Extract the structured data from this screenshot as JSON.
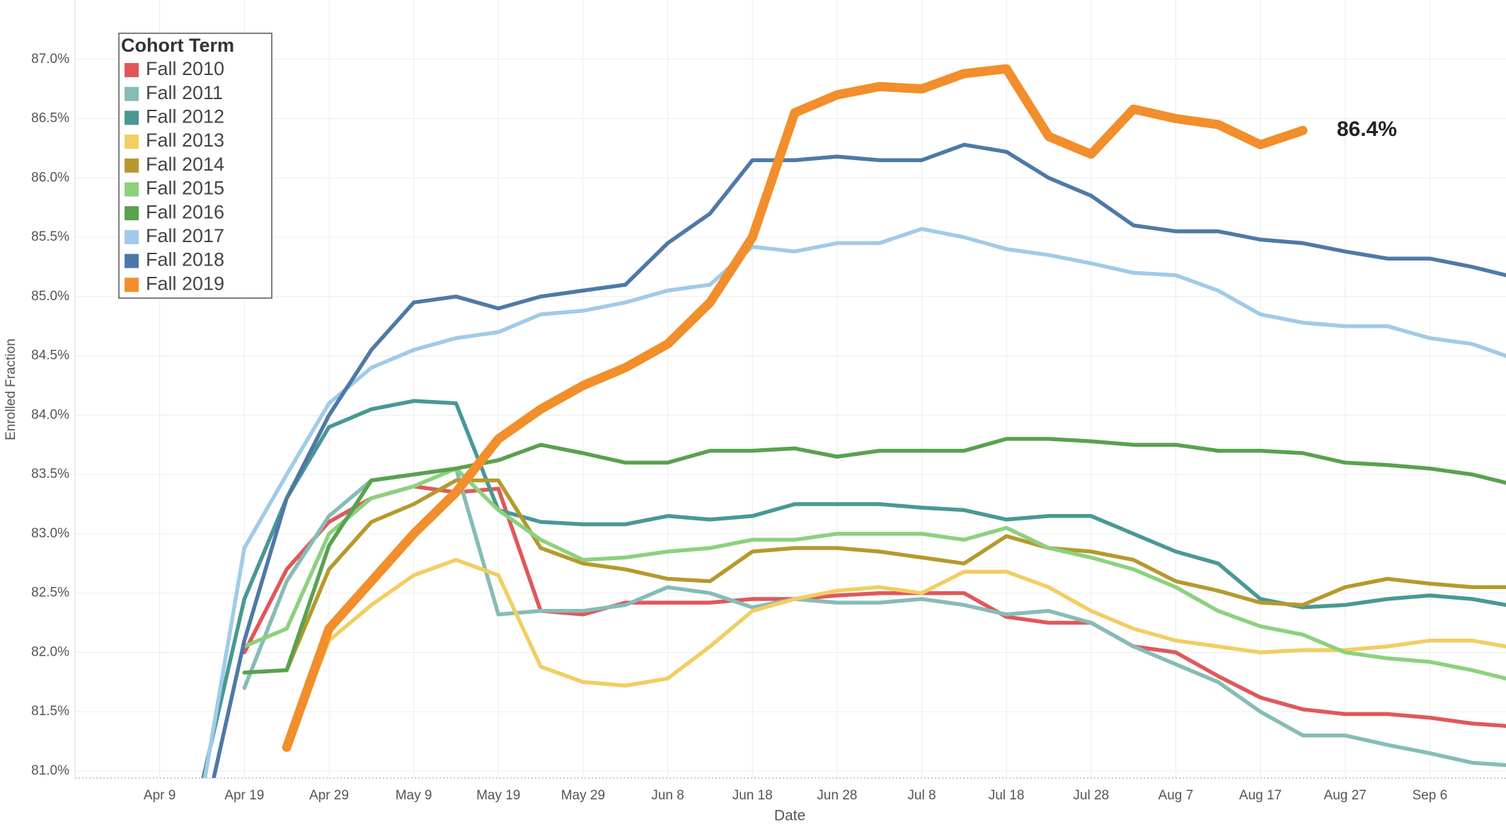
{
  "chart_data": {
    "type": "line",
    "x_label": "Date",
    "y_label": "Enrolled Fraction",
    "legend_title": "Cohort Term",
    "legend": "top-left",
    "grid": true,
    "x": [
      "Apr 14",
      "Apr 19",
      "Apr 24",
      "Apr 29",
      "May 4",
      "May 9",
      "May 14",
      "May 19",
      "May 24",
      "May 29",
      "Jun 3",
      "Jun 8",
      "Jun 13",
      "Jun 18",
      "Jun 23",
      "Jun 28",
      "Jul 3",
      "Jul 8",
      "Jul 13",
      "Jul 18",
      "Jul 23",
      "Jul 28",
      "Aug 2",
      "Aug 7",
      "Aug 12",
      "Aug 17",
      "Aug 22",
      "Aug 27",
      "Sep 1",
      "Sep 6",
      "Sep 11",
      "Sep 15"
    ],
    "xlim": [
      "Mar 30",
      "Sep 15"
    ],
    "xticks": [
      "Apr 9",
      "Apr 19",
      "Apr 29",
      "May 9",
      "May 19",
      "May 29",
      "Jun 8",
      "Jun 18",
      "Jun 28",
      "Jul 8",
      "Jul 18",
      "Jul 28",
      "Aug 7",
      "Aug 17",
      "Aug 27",
      "Sep 6"
    ],
    "ylim": [
      80.94,
      87.5
    ],
    "yticks": [
      {
        "value": 81,
        "label": "81.0%"
      },
      {
        "value": 81.5,
        "label": "81.5%"
      },
      {
        "value": 82,
        "label": "82.0%"
      },
      {
        "value": 82.5,
        "label": "82.5%"
      },
      {
        "value": 83,
        "label": "83.0%"
      },
      {
        "value": 83.5,
        "label": "83.5%"
      },
      {
        "value": 84,
        "label": "84.0%"
      },
      {
        "value": 84.5,
        "label": "84.5%"
      },
      {
        "value": 85,
        "label": "85.0%"
      },
      {
        "value": 85.5,
        "label": "85.5%"
      },
      {
        "value": 86,
        "label": "86.0%"
      },
      {
        "value": 86.5,
        "label": "86.5%"
      },
      {
        "value": 87,
        "label": "87.0%"
      }
    ],
    "series": [
      {
        "name": "Fall 2010",
        "color": "#e15759",
        "values": [
          null,
          82.0,
          82.7,
          83.1,
          83.3,
          83.4,
          83.35,
          83.38,
          82.35,
          82.32,
          82.42,
          82.42,
          82.42,
          82.45,
          82.45,
          82.48,
          82.5,
          82.5,
          82.5,
          82.3,
          82.25,
          82.25,
          82.05,
          82.0,
          81.8,
          81.62,
          81.52,
          81.48,
          81.48,
          81.45,
          81.4,
          81.38
        ]
      },
      {
        "name": "Fall 2011",
        "color": "#86bcb6",
        "values": [
          null,
          81.7,
          82.6,
          83.15,
          83.45,
          83.5,
          83.55,
          82.32,
          82.35,
          82.35,
          82.4,
          82.55,
          82.5,
          82.38,
          82.45,
          82.42,
          82.42,
          82.45,
          82.4,
          82.32,
          82.35,
          82.25,
          82.05,
          81.9,
          81.75,
          81.5,
          81.3,
          81.3,
          81.22,
          81.15,
          81.07,
          81.05
        ]
      },
      {
        "name": "Fall 2012",
        "color": "#499894",
        "values": [
          80.9,
          82.45,
          83.3,
          83.9,
          84.05,
          84.12,
          84.1,
          83.2,
          83.1,
          83.08,
          83.08,
          83.15,
          83.12,
          83.15,
          83.25,
          83.25,
          83.25,
          83.22,
          83.2,
          83.12,
          83.15,
          83.15,
          83.0,
          82.85,
          82.75,
          82.45,
          82.38,
          82.4,
          82.45,
          82.48,
          82.45,
          82.4
        ]
      },
      {
        "name": "Fall 2013",
        "color": "#f1ce63",
        "values": [
          null,
          null,
          81.2,
          82.1,
          82.4,
          82.65,
          82.78,
          82.65,
          81.88,
          81.75,
          81.72,
          81.78,
          82.05,
          82.35,
          82.45,
          82.52,
          82.55,
          82.5,
          82.68,
          82.68,
          82.55,
          82.35,
          82.2,
          82.1,
          82.05,
          82.0,
          82.02,
          82.02,
          82.05,
          82.1,
          82.1,
          82.05
        ]
      },
      {
        "name": "Fall 2014",
        "color": "#b6992d",
        "values": [
          null,
          null,
          81.85,
          82.7,
          83.1,
          83.25,
          83.45,
          83.45,
          82.88,
          82.75,
          82.7,
          82.62,
          82.6,
          82.85,
          82.88,
          82.88,
          82.85,
          82.8,
          82.75,
          82.98,
          82.88,
          82.85,
          82.78,
          82.6,
          82.52,
          82.42,
          82.4,
          82.55,
          82.62,
          82.58,
          82.55,
          82.55
        ]
      },
      {
        "name": "Fall 2015",
        "color": "#8cd17d",
        "values": [
          null,
          82.05,
          82.2,
          83.0,
          83.3,
          83.4,
          83.55,
          83.2,
          82.95,
          82.78,
          82.8,
          82.85,
          82.88,
          82.95,
          82.95,
          83.0,
          83.0,
          83.0,
          82.95,
          83.05,
          82.88,
          82.8,
          82.7,
          82.55,
          82.35,
          82.22,
          82.15,
          82.0,
          81.95,
          81.92,
          81.85,
          81.78
        ]
      },
      {
        "name": "Fall 2016",
        "color": "#59a14f",
        "values": [
          null,
          81.83,
          81.85,
          82.9,
          83.45,
          83.5,
          83.55,
          83.62,
          83.75,
          83.68,
          83.6,
          83.6,
          83.7,
          83.7,
          83.72,
          83.65,
          83.7,
          83.7,
          83.7,
          83.8,
          83.8,
          83.78,
          83.75,
          83.75,
          83.7,
          83.7,
          83.68,
          83.6,
          83.58,
          83.55,
          83.5,
          83.43
        ]
      },
      {
        "name": "Fall 2017",
        "color": "#a0cbe8",
        "values": [
          80.8,
          82.88,
          83.5,
          84.1,
          84.4,
          84.55,
          84.65,
          84.7,
          84.85,
          84.88,
          84.95,
          85.05,
          85.1,
          85.42,
          85.38,
          85.45,
          85.45,
          85.57,
          85.5,
          85.4,
          85.35,
          85.28,
          85.2,
          85.18,
          85.05,
          84.85,
          84.78,
          84.75,
          84.75,
          84.65,
          84.6,
          84.5
        ]
      },
      {
        "name": "Fall 2018",
        "color": "#4e79a7",
        "values": [
          80.5,
          82.1,
          83.3,
          84.0,
          84.55,
          84.95,
          85.0,
          84.9,
          85.0,
          85.05,
          85.1,
          85.45,
          85.7,
          86.15,
          86.15,
          86.18,
          86.15,
          86.15,
          86.28,
          86.22,
          86.0,
          85.85,
          85.6,
          85.55,
          85.55,
          85.48,
          85.45,
          85.38,
          85.32,
          85.32,
          85.25,
          85.18
        ]
      },
      {
        "name": "Fall 2019",
        "color": "#f28e2b",
        "values": [
          null,
          null,
          81.2,
          82.2,
          82.6,
          83.0,
          83.35,
          83.8,
          84.05,
          84.25,
          84.4,
          84.6,
          84.95,
          85.5,
          86.55,
          86.7,
          86.77,
          86.75,
          86.88,
          86.92,
          86.35,
          86.2,
          86.58,
          86.5,
          86.45,
          86.28,
          86.4,
          null,
          null,
          null,
          null,
          null
        ],
        "value_labels": [
          null,
          null,
          null,
          null,
          null,
          null,
          null,
          null,
          null,
          null,
          null,
          null,
          null,
          null,
          null,
          null,
          null,
          null,
          null,
          null,
          null,
          null,
          null,
          null,
          null,
          null,
          "86.4%",
          null,
          null,
          null,
          null,
          null
        ]
      }
    ]
  }
}
